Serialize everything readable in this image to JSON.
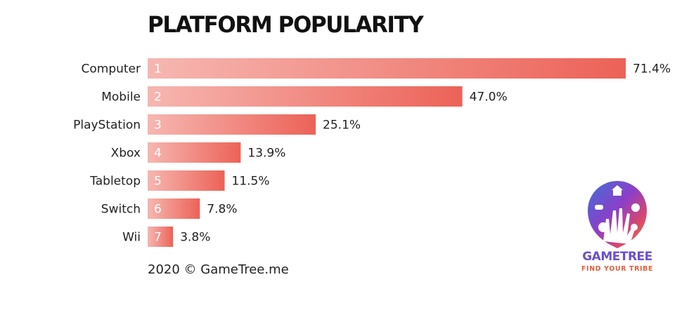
{
  "colors": {
    "bar_start": "#f6b7b1",
    "bar_end": "#ec6257",
    "text": "#222222"
  },
  "chart_data": {
    "type": "bar",
    "orientation": "horizontal",
    "title": "PLATFORM POPULARITY",
    "categories": [
      "Computer",
      "Mobile",
      "PlayStation",
      "Xbox",
      "Tabletop",
      "Switch",
      "Wii"
    ],
    "ranks": [
      "1",
      "2",
      "3",
      "4",
      "5",
      "6",
      "7"
    ],
    "values": [
      71.4,
      47.0,
      25.1,
      13.9,
      11.5,
      7.8,
      3.8
    ],
    "value_labels": [
      "71.4%",
      "47.0%",
      "25.1%",
      "13.9%",
      "11.5%",
      "7.8%",
      "3.8%"
    ],
    "xlim": [
      0,
      71.4
    ],
    "grid": false,
    "legend": "none"
  },
  "footer": {
    "credit": "2020 © GameTree.me"
  },
  "logo": {
    "name": "GAMETREE",
    "tagline": "FIND YOUR TRIBE",
    "icon": "gametree-hand-tree-icon"
  }
}
